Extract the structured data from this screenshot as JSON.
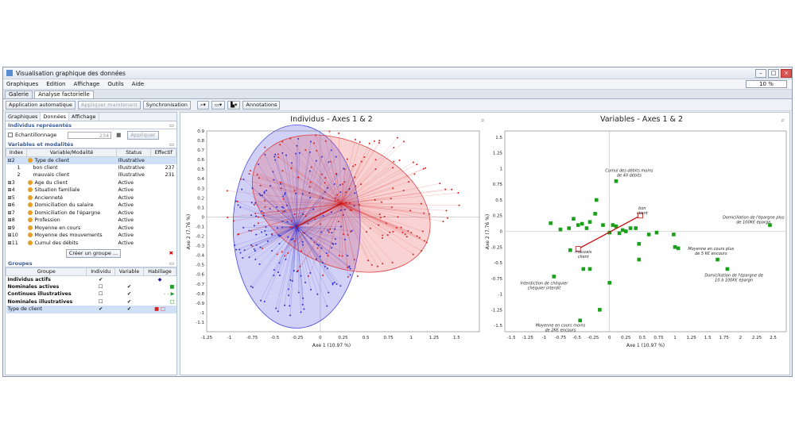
{
  "window": {
    "title": "Visualisation graphique des données"
  },
  "menu": [
    "Graphiques",
    "Edition",
    "Affichage",
    "Outils",
    "Aide"
  ],
  "zoom": "10 %",
  "tabs": [
    "Galerie",
    "Analyse factorielle"
  ],
  "toolbar": {
    "auto": "Application automatique",
    "apply": "Appliquer maintenant",
    "sync": "Synchronisation",
    "annot": "Annotations"
  },
  "subtabs": [
    "Graphiques",
    "Données",
    "Affichage"
  ],
  "ind": {
    "title": "Individus représentés",
    "sample": "Echantillonnage",
    "count": "234",
    "apply": "Appliquer"
  },
  "vars": {
    "title": "Variables et modalités",
    "headers": [
      "Index",
      "Variable/Modalité",
      "Status",
      "Effectif"
    ],
    "rows": [
      [
        "⊟2",
        "Type de client",
        "Illustrative",
        ""
      ],
      [
        "1",
        "bon client",
        "Illustrative",
        "237"
      ],
      [
        "2",
        "mauvais client",
        "Illustrative",
        "231"
      ],
      [
        "⊞3",
        "Age du client",
        "Active",
        ""
      ],
      [
        "⊞4",
        "Situation familiale",
        "Active",
        ""
      ],
      [
        "⊞5",
        "Ancienneté",
        "Active",
        ""
      ],
      [
        "⊞6",
        "Domiciliation du salaire",
        "Active",
        ""
      ],
      [
        "⊞7",
        "Domiciliation de l'épargne",
        "Active",
        ""
      ],
      [
        "⊞8",
        "Profession",
        "Active",
        ""
      ],
      [
        "⊞9",
        "Moyenne en cours",
        "Active",
        ""
      ],
      [
        "⊞10",
        "Moyenne des mouvements",
        "Active",
        ""
      ],
      [
        "⊞11",
        "Cumul des débits",
        "Active",
        ""
      ]
    ],
    "create": "Créer un groupe ..."
  },
  "groups": {
    "title": "Groupes",
    "headers": [
      "Groupe",
      "Individu",
      "Variable",
      "Habillage"
    ],
    "rows": [
      [
        "Individus actifs",
        "✔",
        "",
        "◆"
      ],
      [
        "Nominales actives",
        "☐",
        "✔",
        "■"
      ],
      [
        "Continues illustratives",
        "☐",
        "✔",
        "- - ▶"
      ],
      [
        "Nominales illustratives",
        "☐",
        "✔",
        "□"
      ],
      [
        "Type de client",
        "✔",
        "✔",
        "■ □"
      ]
    ]
  },
  "chart_data": [
    {
      "type": "scatter",
      "title": "Individus - Axes 1 & 2",
      "xlabel": "Axe 1 (10.97 %)",
      "ylabel": "Axe 2 (7.76 %)",
      "xlim": [
        -1.25,
        1.75
      ],
      "ylim": [
        -1.2,
        0.9
      ],
      "xticks": [
        "-1.25",
        "-1",
        "-0.75",
        "-0.5",
        "-0.25",
        "0",
        "0.25",
        "0.5",
        "0.75",
        "1",
        "1.25",
        "1.5"
      ],
      "yticks": [
        "0.9",
        "0.8",
        "0.7",
        "0.6",
        "0.5",
        "0.4",
        "0.3",
        "0.2",
        "0.1",
        "0",
        "-0.1",
        "-0.2",
        "-0.3",
        "-0.4",
        "-0.5",
        "-0.6",
        "-0.7",
        "-0.8",
        "-0.9",
        "-1",
        "-1.1"
      ],
      "series": [
        {
          "name": "mauvais client",
          "color": "#3b3bd6",
          "center": [
            -0.26,
            -0.1
          ]
        },
        {
          "name": "bon client",
          "color": "#e02a2a",
          "center": [
            0.23,
            0.14
          ]
        }
      ]
    },
    {
      "type": "scatter",
      "title": "Variables - Axes 1 & 2",
      "xlabel": "Axe 1 (10.97 %)",
      "ylabel": "Axe 2 (7.76 %)",
      "xlim": [
        -1.6,
        2.7
      ],
      "ylim": [
        -1.6,
        1.6
      ],
      "xticks": [
        "-1.5",
        "-1.25",
        "-1",
        "-0.75",
        "-0.5",
        "-0.25",
        "0",
        "0.25",
        "0.5",
        "0.75",
        "1",
        "1.25",
        "1.5",
        "1.75",
        "2",
        "2.25",
        "2.5"
      ],
      "yticks": [
        "1.5",
        "1.25",
        "1",
        "0.75",
        "0.5",
        "0.25",
        "0",
        "-0.25",
        "-0.5",
        "-0.75",
        "-1",
        "-1.25",
        "-1.5"
      ],
      "points": [
        [
          -0.9,
          0.13
        ],
        [
          -0.75,
          0.03
        ],
        [
          -0.62,
          0.05
        ],
        [
          -0.55,
          0.2
        ],
        [
          -0.48,
          0.1
        ],
        [
          -0.42,
          0.12
        ],
        [
          -0.35,
          0.05
        ],
        [
          -0.3,
          0.15
        ],
        [
          -0.22,
          0.28
        ],
        [
          -0.2,
          0.5
        ],
        [
          -0.1,
          0.1
        ],
        [
          0.0,
          -0.02
        ],
        [
          0.05,
          0.1
        ],
        [
          0.1,
          0.08
        ],
        [
          0.15,
          -0.03
        ],
        [
          0.2,
          0.02
        ],
        [
          0.25,
          0.0
        ],
        [
          0.32,
          0.05
        ],
        [
          0.4,
          0.05
        ],
        [
          0.45,
          -0.2
        ],
        [
          0.6,
          -0.05
        ],
        [
          0.72,
          -0.02
        ],
        [
          0.98,
          -0.05
        ],
        [
          1.0,
          -0.25
        ],
        [
          1.05,
          -0.27
        ],
        [
          0.1,
          0.8
        ],
        [
          0.0,
          -0.82
        ],
        [
          -0.85,
          -0.72
        ],
        [
          -0.4,
          -0.6
        ],
        [
          -0.3,
          -0.6
        ],
        [
          -0.15,
          -1.25
        ],
        [
          -0.45,
          -1.42
        ],
        [
          1.65,
          -0.45
        ],
        [
          1.8,
          -0.6
        ],
        [
          2.45,
          0.1
        ],
        [
          0.45,
          -0.45
        ],
        [
          -0.6,
          -0.3
        ]
      ],
      "illustrative": [
        {
          "name": "bon client",
          "x": 0.47,
          "y": 0.25
        },
        {
          "name": "mauvais client",
          "x": -0.48,
          "y": -0.28
        }
      ],
      "annotations": [
        "Cumul des débits moins de 40 débits",
        "bon client",
        "Domiciliation de l'épargne plus de 100K€ épargn",
        "mauvais client",
        "Moyenne en cours plus de 5 K€ encours",
        "Interdiction de chéquier chéquier interdit",
        "Domiciliation de l'épargne de 10 à 100K€ épargn",
        "Moyenne en cours moins de 2K€ encours"
      ]
    }
  ]
}
